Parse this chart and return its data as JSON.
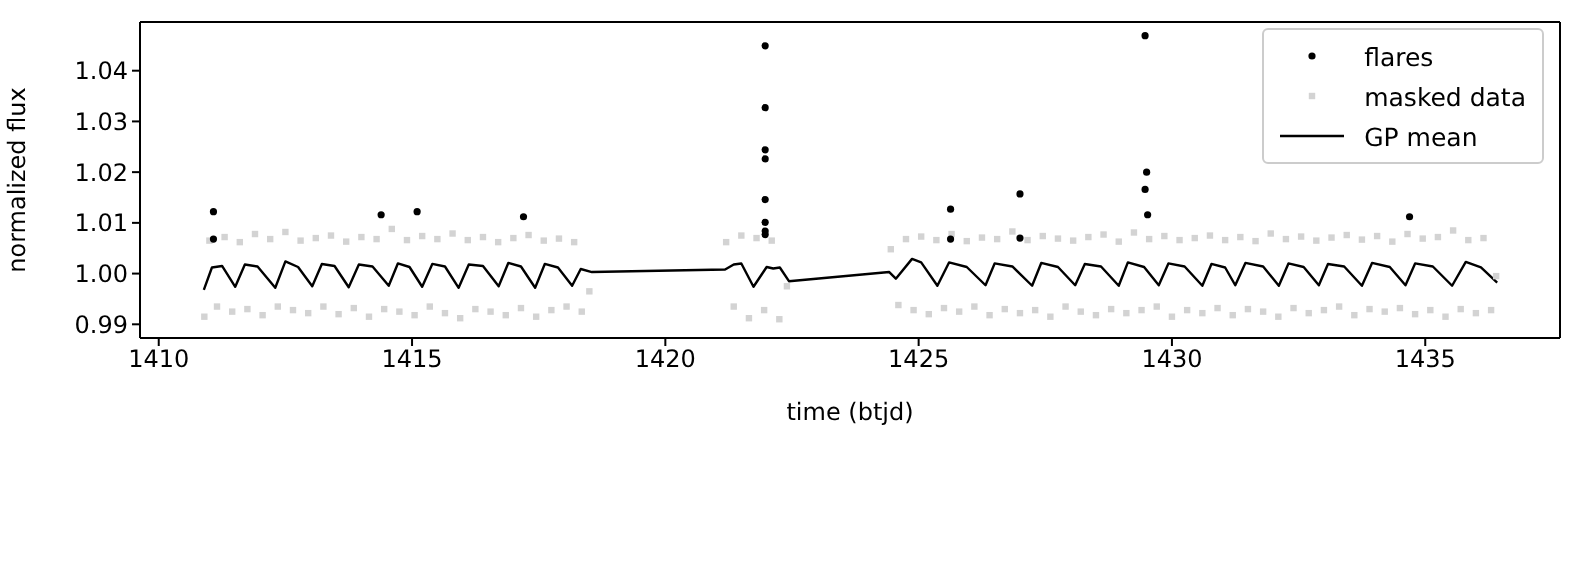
{
  "chart_data": {
    "type": "scatter",
    "xlabel": "time (btjd)",
    "ylabel": "normalized flux",
    "xlim": [
      1409.63,
      1437.66
    ],
    "xticks": [
      1410,
      1415,
      1420,
      1425,
      1430,
      1435
    ],
    "ylim": [
      0.9873,
      1.0496
    ],
    "yticks": [
      0.99,
      {
        "value": 1.0,
        "label": "1.00"
      },
      1.01,
      1.02,
      1.03,
      1.04
    ],
    "grid": false,
    "legend": "top right",
    "series": [
      {
        "name": "masked data",
        "marker": "square",
        "color": "#d3d3d3",
        "x": [
          1410.9,
          1411.0,
          1411.15,
          1411.3,
          1411.45,
          1411.6,
          1411.75,
          1411.9,
          1412.05,
          1412.2,
          1412.35,
          1412.5,
          1412.65,
          1412.8,
          1412.95,
          1413.1,
          1413.25,
          1413.4,
          1413.55,
          1413.7,
          1413.85,
          1414.0,
          1414.15,
          1414.3,
          1414.45,
          1414.6,
          1414.75,
          1414.9,
          1415.05,
          1415.2,
          1415.35,
          1415.5,
          1415.65,
          1415.8,
          1415.95,
          1416.1,
          1416.25,
          1416.4,
          1416.55,
          1416.7,
          1416.85,
          1417.0,
          1417.15,
          1417.3,
          1417.45,
          1417.6,
          1417.75,
          1417.9,
          1418.05,
          1418.2,
          1418.35,
          1418.5,
          1421.2,
          1421.35,
          1421.5,
          1421.65,
          1421.8,
          1421.95,
          1422.1,
          1422.25,
          1422.4,
          1424.45,
          1424.6,
          1424.75,
          1424.9,
          1425.05,
          1425.2,
          1425.35,
          1425.5,
          1425.65,
          1425.8,
          1425.95,
          1426.1,
          1426.25,
          1426.4,
          1426.55,
          1426.7,
          1426.85,
          1427.0,
          1427.15,
          1427.3,
          1427.45,
          1427.6,
          1427.75,
          1427.9,
          1428.05,
          1428.2,
          1428.35,
          1428.5,
          1428.65,
          1428.8,
          1428.95,
          1429.1,
          1429.25,
          1429.4,
          1429.55,
          1429.7,
          1429.85,
          1430.0,
          1430.15,
          1430.3,
          1430.45,
          1430.6,
          1430.75,
          1430.9,
          1431.05,
          1431.2,
          1431.35,
          1431.5,
          1431.65,
          1431.8,
          1431.95,
          1432.1,
          1432.25,
          1432.4,
          1432.55,
          1432.7,
          1432.85,
          1433.0,
          1433.15,
          1433.3,
          1433.45,
          1433.6,
          1433.75,
          1433.9,
          1434.05,
          1434.2,
          1434.35,
          1434.5,
          1434.65,
          1434.8,
          1434.95,
          1435.1,
          1435.25,
          1435.4,
          1435.55,
          1435.7,
          1435.85,
          1436.0,
          1436.15,
          1436.3,
          1436.4
        ],
        "values": [
          0.9915,
          1.0065,
          0.9935,
          1.0072,
          0.9925,
          1.0062,
          0.993,
          1.0078,
          0.9918,
          1.0068,
          0.9935,
          1.0082,
          0.9928,
          1.0065,
          0.9922,
          1.007,
          0.9935,
          1.0075,
          0.992,
          1.0063,
          0.9932,
          1.0072,
          0.9915,
          1.0068,
          0.993,
          1.0088,
          0.9925,
          1.0066,
          0.9918,
          1.0074,
          0.9935,
          1.0068,
          0.9922,
          1.0079,
          0.9912,
          1.0066,
          0.993,
          1.0072,
          0.9925,
          1.0062,
          0.9918,
          1.007,
          0.9932,
          1.0076,
          0.9915,
          1.0065,
          0.9928,
          1.0069,
          0.9935,
          1.0062,
          0.9925,
          0.9965,
          1.0062,
          0.9935,
          1.0075,
          0.9912,
          1.007,
          0.9928,
          1.0065,
          0.991,
          0.9975,
          1.0048,
          0.9938,
          1.0068,
          0.9928,
          1.0073,
          0.992,
          1.0066,
          0.9932,
          1.0078,
          0.9925,
          1.0064,
          0.9935,
          1.0071,
          0.9918,
          1.0068,
          0.993,
          1.0083,
          0.9922,
          1.0066,
          0.9928,
          1.0074,
          0.9915,
          1.0069,
          0.9935,
          1.0065,
          0.9925,
          1.0072,
          0.9918,
          1.0077,
          0.993,
          1.0063,
          0.9922,
          1.0081,
          0.9928,
          1.0068,
          0.9935,
          1.0074,
          0.9915,
          1.0066,
          0.9928,
          1.007,
          0.9922,
          1.0075,
          0.9932,
          1.0066,
          0.9918,
          1.0072,
          0.993,
          1.0064,
          0.9925,
          1.0079,
          0.9915,
          1.0068,
          0.9932,
          1.0073,
          0.9922,
          1.0065,
          0.9928,
          1.0071,
          0.9935,
          1.0076,
          0.9918,
          1.0067,
          0.993,
          1.0074,
          0.9925,
          1.0063,
          0.9932,
          1.0078,
          0.992,
          1.0069,
          0.9928,
          1.0072,
          0.9915,
          1.0085,
          0.993,
          1.0066,
          0.9922,
          1.007,
          0.9928,
          0.9995
        ]
      },
      {
        "name": "GP mean",
        "type": "line",
        "marker": "none",
        "line_style": "solid",
        "color": "#000000",
        "x": [
          1410.89,
          1411.05,
          1411.25,
          1411.51,
          1411.7,
          1411.95,
          1412.3,
          1412.5,
          1412.75,
          1413.03,
          1413.22,
          1413.47,
          1413.75,
          1413.95,
          1414.22,
          1414.54,
          1414.72,
          1414.95,
          1415.2,
          1415.4,
          1415.65,
          1415.92,
          1416.12,
          1416.4,
          1416.71,
          1416.9,
          1417.15,
          1417.43,
          1417.62,
          1417.88,
          1418.16,
          1418.33,
          1418.55,
          1421.18,
          1421.35,
          1421.5,
          1421.74,
          1422.0,
          1422.13,
          1422.26,
          1422.44,
          1424.42,
          1424.55,
          1424.87,
          1425.05,
          1425.37,
          1425.6,
          1425.95,
          1426.32,
          1426.5,
          1426.85,
          1427.24,
          1427.42,
          1427.75,
          1428.09,
          1428.28,
          1428.6,
          1428.95,
          1429.13,
          1429.45,
          1429.74,
          1429.93,
          1430.25,
          1430.6,
          1430.78,
          1431.05,
          1431.25,
          1431.45,
          1431.8,
          1432.11,
          1432.3,
          1432.6,
          1432.9,
          1433.08,
          1433.4,
          1433.75,
          1433.95,
          1434.3,
          1434.61,
          1434.8,
          1435.15,
          1435.53,
          1435.8,
          1436.1,
          1436.42
        ],
        "values": [
          0.9968,
          1.0012,
          1.0015,
          0.9974,
          1.0018,
          1.0014,
          0.9972,
          1.0024,
          1.0013,
          0.9975,
          1.0019,
          1.0015,
          0.9973,
          1.0018,
          1.0014,
          0.9976,
          1.002,
          1.0013,
          0.9974,
          1.0019,
          1.0014,
          0.9972,
          1.0018,
          1.0015,
          0.9975,
          1.0021,
          1.0014,
          0.9972,
          1.0019,
          1.0012,
          0.9976,
          1.0009,
          1.0003,
          1.0008,
          1.0018,
          1.002,
          0.9974,
          1.0013,
          1.001,
          1.0012,
          0.9985,
          1.0003,
          0.999,
          1.0029,
          1.0022,
          0.9976,
          1.0022,
          1.0013,
          0.9977,
          1.002,
          1.0014,
          0.9976,
          1.0021,
          1.0013,
          0.9977,
          1.0019,
          1.0014,
          0.9976,
          1.0022,
          1.0013,
          0.9977,
          1.002,
          1.0014,
          0.9976,
          1.0019,
          1.0012,
          0.9977,
          1.0021,
          1.0014,
          0.9976,
          1.002,
          1.0013,
          0.9977,
          1.0019,
          1.0014,
          0.9976,
          1.0021,
          1.0013,
          0.9977,
          1.002,
          1.0014,
          0.9976,
          1.0023,
          1.0012,
          0.9982
        ]
      },
      {
        "name": "flares",
        "marker": "circle",
        "color": "#000000",
        "x": [
          1411.08,
          1411.08,
          1414.39,
          1415.1,
          1417.2,
          1421.97,
          1421.97,
          1421.97,
          1421.97,
          1421.97,
          1421.97,
          1421.97,
          1421.97,
          1425.63,
          1425.63,
          1427.0,
          1427.0,
          1429.47,
          1429.5,
          1429.47,
          1429.52,
          1434.69
        ],
        "values": [
          1.0122,
          1.0068,
          1.0116,
          1.0122,
          1.0112,
          1.0449,
          1.0327,
          1.0244,
          1.0226,
          1.0146,
          1.0101,
          1.0084,
          1.0077,
          1.0127,
          1.0068,
          1.0157,
          1.007,
          1.0469,
          1.02,
          1.0166,
          1.0116,
          1.0112
        ]
      }
    ]
  }
}
